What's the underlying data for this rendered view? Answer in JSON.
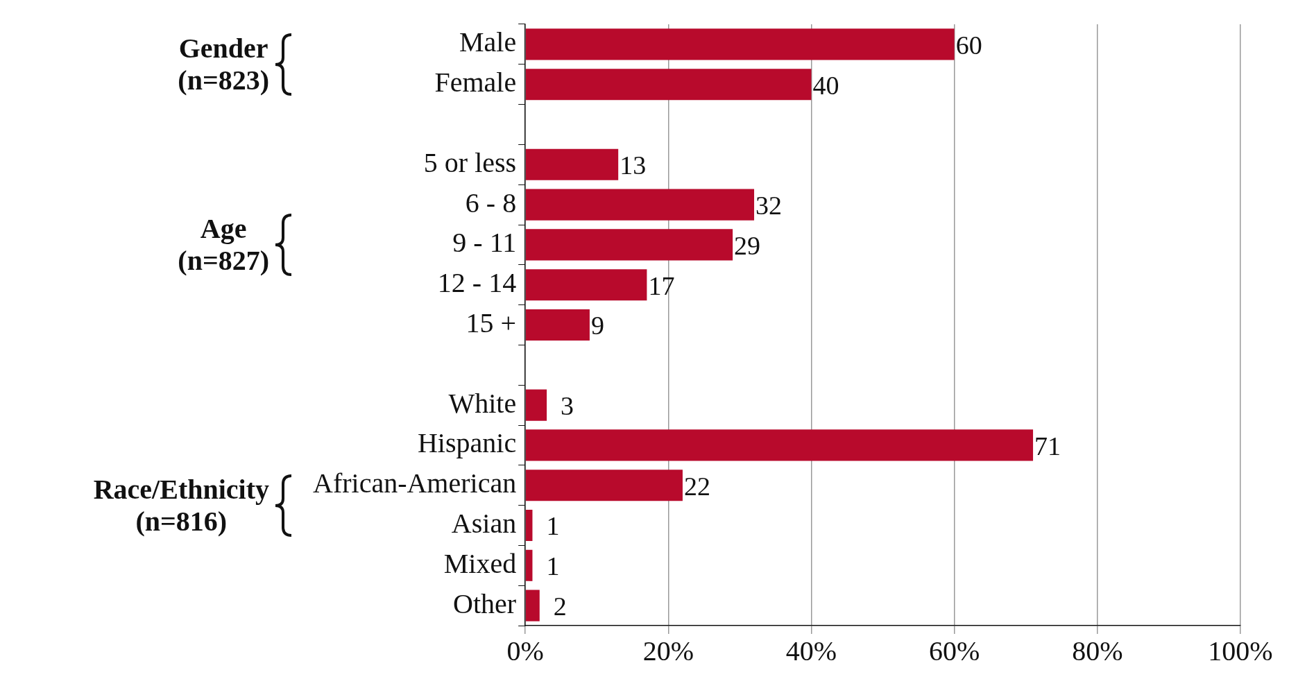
{
  "chart_data": {
    "type": "bar",
    "orientation": "horizontal",
    "categories": [
      "Male",
      "Female",
      null,
      "5 or less",
      "6 - 8",
      "9 - 11",
      "12 - 14",
      "15 +",
      null,
      "White",
      "Hispanic",
      "African-American",
      "Asian",
      "Mixed",
      "Other"
    ],
    "values": [
      60,
      40,
      null,
      13,
      32,
      29,
      17,
      9,
      null,
      3,
      71,
      22,
      1,
      1,
      2
    ],
    "color": "#b80a2c",
    "xlim": [
      0,
      100
    ],
    "xticks": [
      {
        "value": 0,
        "label": "0%"
      },
      {
        "value": 20,
        "label": "20%"
      },
      {
        "value": 40,
        "label": "40%"
      },
      {
        "value": 60,
        "label": "60%"
      },
      {
        "value": 80,
        "label": "80%"
      },
      {
        "value": 100,
        "label": "100%"
      }
    ],
    "grid": "x",
    "data_labels": true,
    "legend": false,
    "annotations": [
      "Gender\n(n=823)",
      "Age\n(n=827)",
      "Race/Ethnicity\n(n=816)"
    ]
  }
}
